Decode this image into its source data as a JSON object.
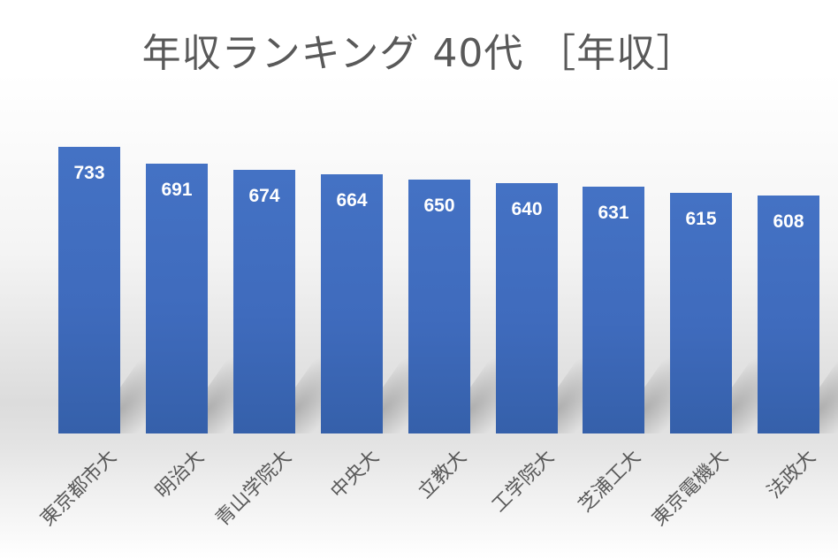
{
  "chart_data": {
    "type": "bar",
    "title": "年収ランキング 40代 ［年収］",
    "categories": [
      "東京都市大",
      "明治大",
      "青山学院大",
      "中央大",
      "立教大",
      "工学院大",
      "芝浦工大",
      "東京電機大",
      "法政大"
    ],
    "values": [
      733,
      691,
      674,
      664,
      650,
      640,
      631,
      615,
      608
    ],
    "xlabel": "",
    "ylabel": "",
    "ylim": [
      0,
      750
    ],
    "grid": false,
    "legend": "none",
    "data_labels": "inside_end",
    "bar_color": "#4472c4"
  }
}
